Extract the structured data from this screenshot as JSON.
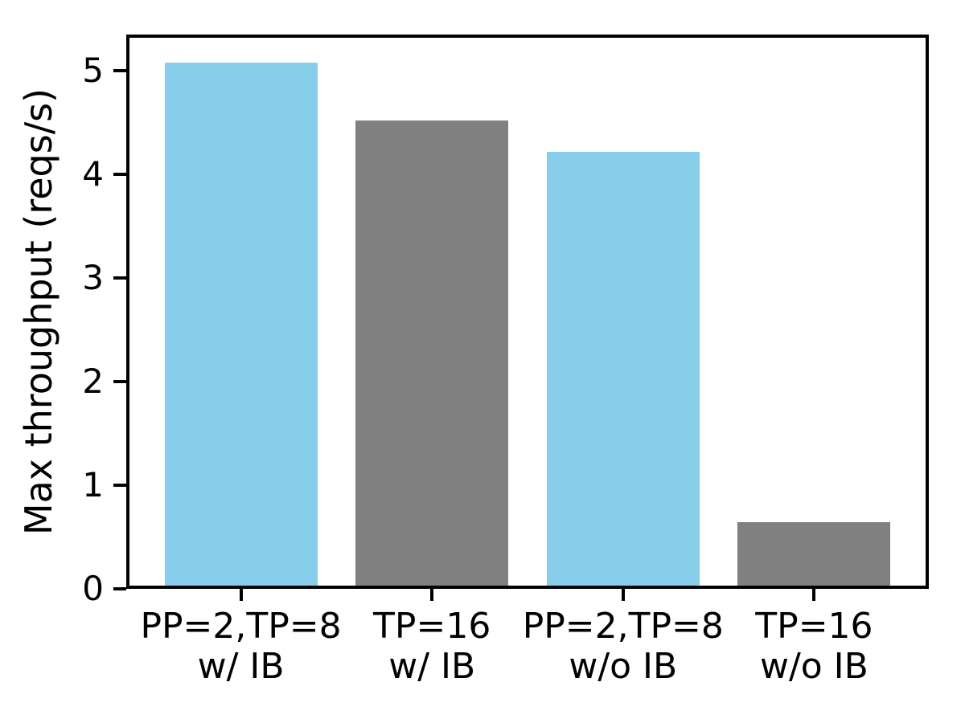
{
  "figure": {
    "background": "#ffffff"
  },
  "chart_data": {
    "type": "bar",
    "categories": [
      "PP=2,TP=8\nw/ IB",
      "TP=16\nw/ IB",
      "PP=2,TP=8\nw/o IB",
      "TP=16\nw/o IB"
    ],
    "values": [
      5.08,
      4.52,
      4.22,
      0.64
    ],
    "bar_colors": [
      "#87CEEB",
      "#808080",
      "#87CEEB",
      "#808080"
    ],
    "title": "",
    "xlabel": "",
    "ylabel": "Max throughput (reqs/s)",
    "ytick_labels": [
      "0",
      "1",
      "2",
      "3",
      "4",
      "5"
    ],
    "yticks": [
      0,
      1,
      2,
      3,
      4,
      5
    ],
    "ylim": [
      0,
      5.35
    ],
    "xlim": [
      -0.6,
      3.6
    ],
    "bar_width": 0.8,
    "grid": false,
    "legend": null
  },
  "colors": {
    "axis": "#000000",
    "text": "#000000",
    "highlight_bar": "#87CEEB",
    "baseline_bar": "#808080"
  }
}
